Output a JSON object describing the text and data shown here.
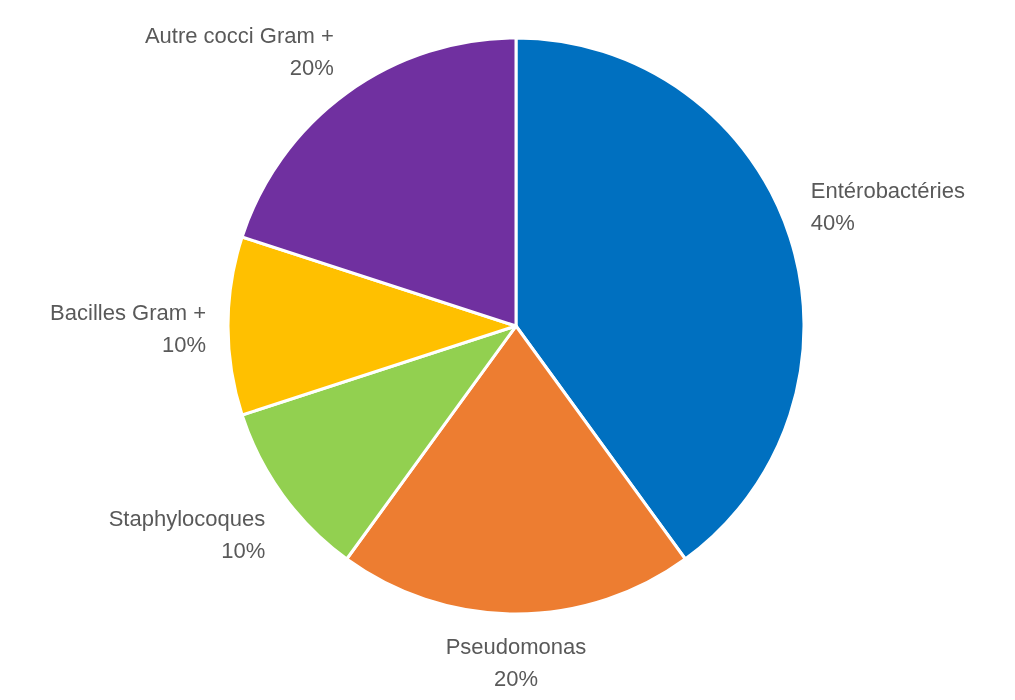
{
  "chart_data": {
    "type": "pie",
    "categories": [
      "Entérobactéries",
      "Pseudomonas",
      "Staphylocoques",
      "Bacilles Gram +",
      "Autre cocci Gram +"
    ],
    "values": [
      40,
      20,
      10,
      10,
      20
    ],
    "colors": [
      "#0070c0",
      "#ed7d31",
      "#92d050",
      "#ffc000",
      "#7030a0"
    ],
    "value_labels": [
      "40%",
      "20%",
      "10%",
      "10%",
      "20%"
    ]
  }
}
